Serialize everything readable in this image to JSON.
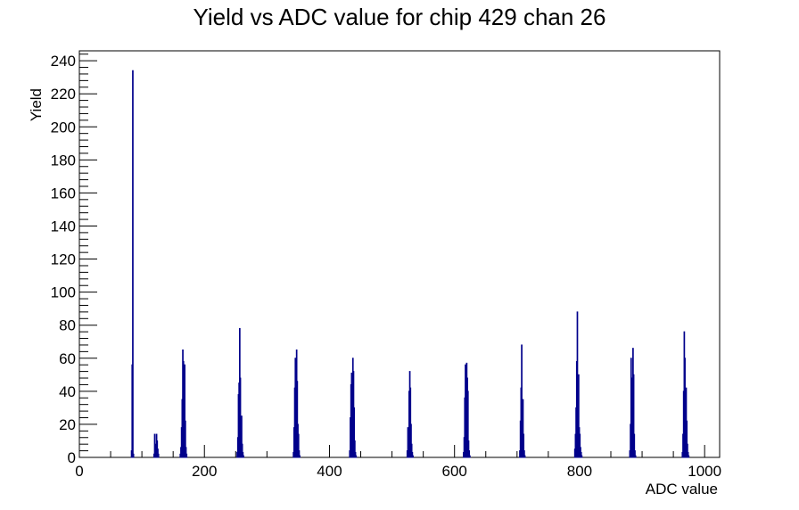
{
  "chart_data": {
    "type": "bar",
    "title": "Yield vs ADC value for chip 429 chan 26",
    "xlabel": "ADC value",
    "ylabel": "Yield",
    "xlim": [
      0,
      1024
    ],
    "ylim": [
      0,
      246
    ],
    "x_ticks": [
      0,
      200,
      400,
      600,
      800,
      1000
    ],
    "y_ticks": [
      0,
      20,
      40,
      60,
      80,
      100,
      120,
      140,
      160,
      180,
      200,
      220,
      240
    ],
    "bin_width": 1,
    "grid": false,
    "legend": "none",
    "line_color": "#00008b",
    "peaks": [
      {
        "x": [
          83,
          84,
          85,
          86
        ],
        "values": [
          4,
          56,
          234,
          2
        ]
      },
      {
        "x": [
          119,
          120,
          121,
          122,
          123,
          124,
          125,
          126
        ],
        "values": [
          2,
          14,
          8,
          4,
          14,
          10,
          5,
          2
        ]
      },
      {
        "x": [
          161,
          162,
          163,
          164,
          165,
          166,
          167,
          168,
          169,
          170,
          171
        ],
        "values": [
          2,
          6,
          18,
          35,
          65,
          58,
          44,
          56,
          22,
          6,
          2
        ]
      },
      {
        "x": [
          252,
          253,
          254,
          255,
          256,
          257,
          258,
          259,
          260,
          261,
          262
        ],
        "values": [
          3,
          12,
          38,
          45,
          78,
          48,
          16,
          25,
          8,
          3,
          1
        ]
      },
      {
        "x": [
          342,
          343,
          344,
          345,
          346,
          347,
          348,
          349,
          350,
          351,
          352
        ],
        "values": [
          3,
          18,
          42,
          60,
          36,
          65,
          46,
          20,
          14,
          4,
          1
        ]
      },
      {
        "x": [
          432,
          433,
          434,
          435,
          436,
          437,
          438,
          439,
          440,
          441,
          442
        ],
        "values": [
          4,
          24,
          44,
          51,
          38,
          60,
          52,
          30,
          10,
          3,
          1
        ]
      },
      {
        "x": [
          524,
          525,
          526,
          527,
          528,
          529,
          530,
          531,
          532,
          533
        ],
        "values": [
          4,
          18,
          16,
          40,
          52,
          42,
          20,
          8,
          3,
          1
        ]
      },
      {
        "x": [
          614,
          615,
          616,
          617,
          618,
          619,
          620,
          621,
          622,
          623,
          624
        ],
        "values": [
          3,
          12,
          36,
          56,
          30,
          57,
          48,
          40,
          10,
          4,
          1
        ]
      },
      {
        "x": [
          704,
          705,
          706,
          707,
          708,
          709,
          710,
          711,
          712
        ],
        "values": [
          4,
          22,
          42,
          68,
          30,
          35,
          14,
          4,
          1
        ]
      },
      {
        "x": [
          792,
          793,
          794,
          795,
          796,
          797,
          798,
          799,
          800,
          801,
          802,
          803
        ],
        "values": [
          5,
          14,
          30,
          58,
          88,
          22,
          50,
          18,
          14,
          6,
          3,
          1
        ]
      },
      {
        "x": [
          880,
          881,
          882,
          883,
          884,
          885,
          886,
          887,
          888,
          889
        ],
        "values": [
          4,
          20,
          60,
          48,
          30,
          66,
          50,
          14,
          4,
          1
        ]
      },
      {
        "x": [
          964,
          965,
          966,
          967,
          968,
          969,
          970,
          971,
          972,
          973,
          974
        ],
        "values": [
          3,
          14,
          40,
          76,
          60,
          34,
          42,
          22,
          8,
          3,
          1
        ]
      }
    ]
  }
}
